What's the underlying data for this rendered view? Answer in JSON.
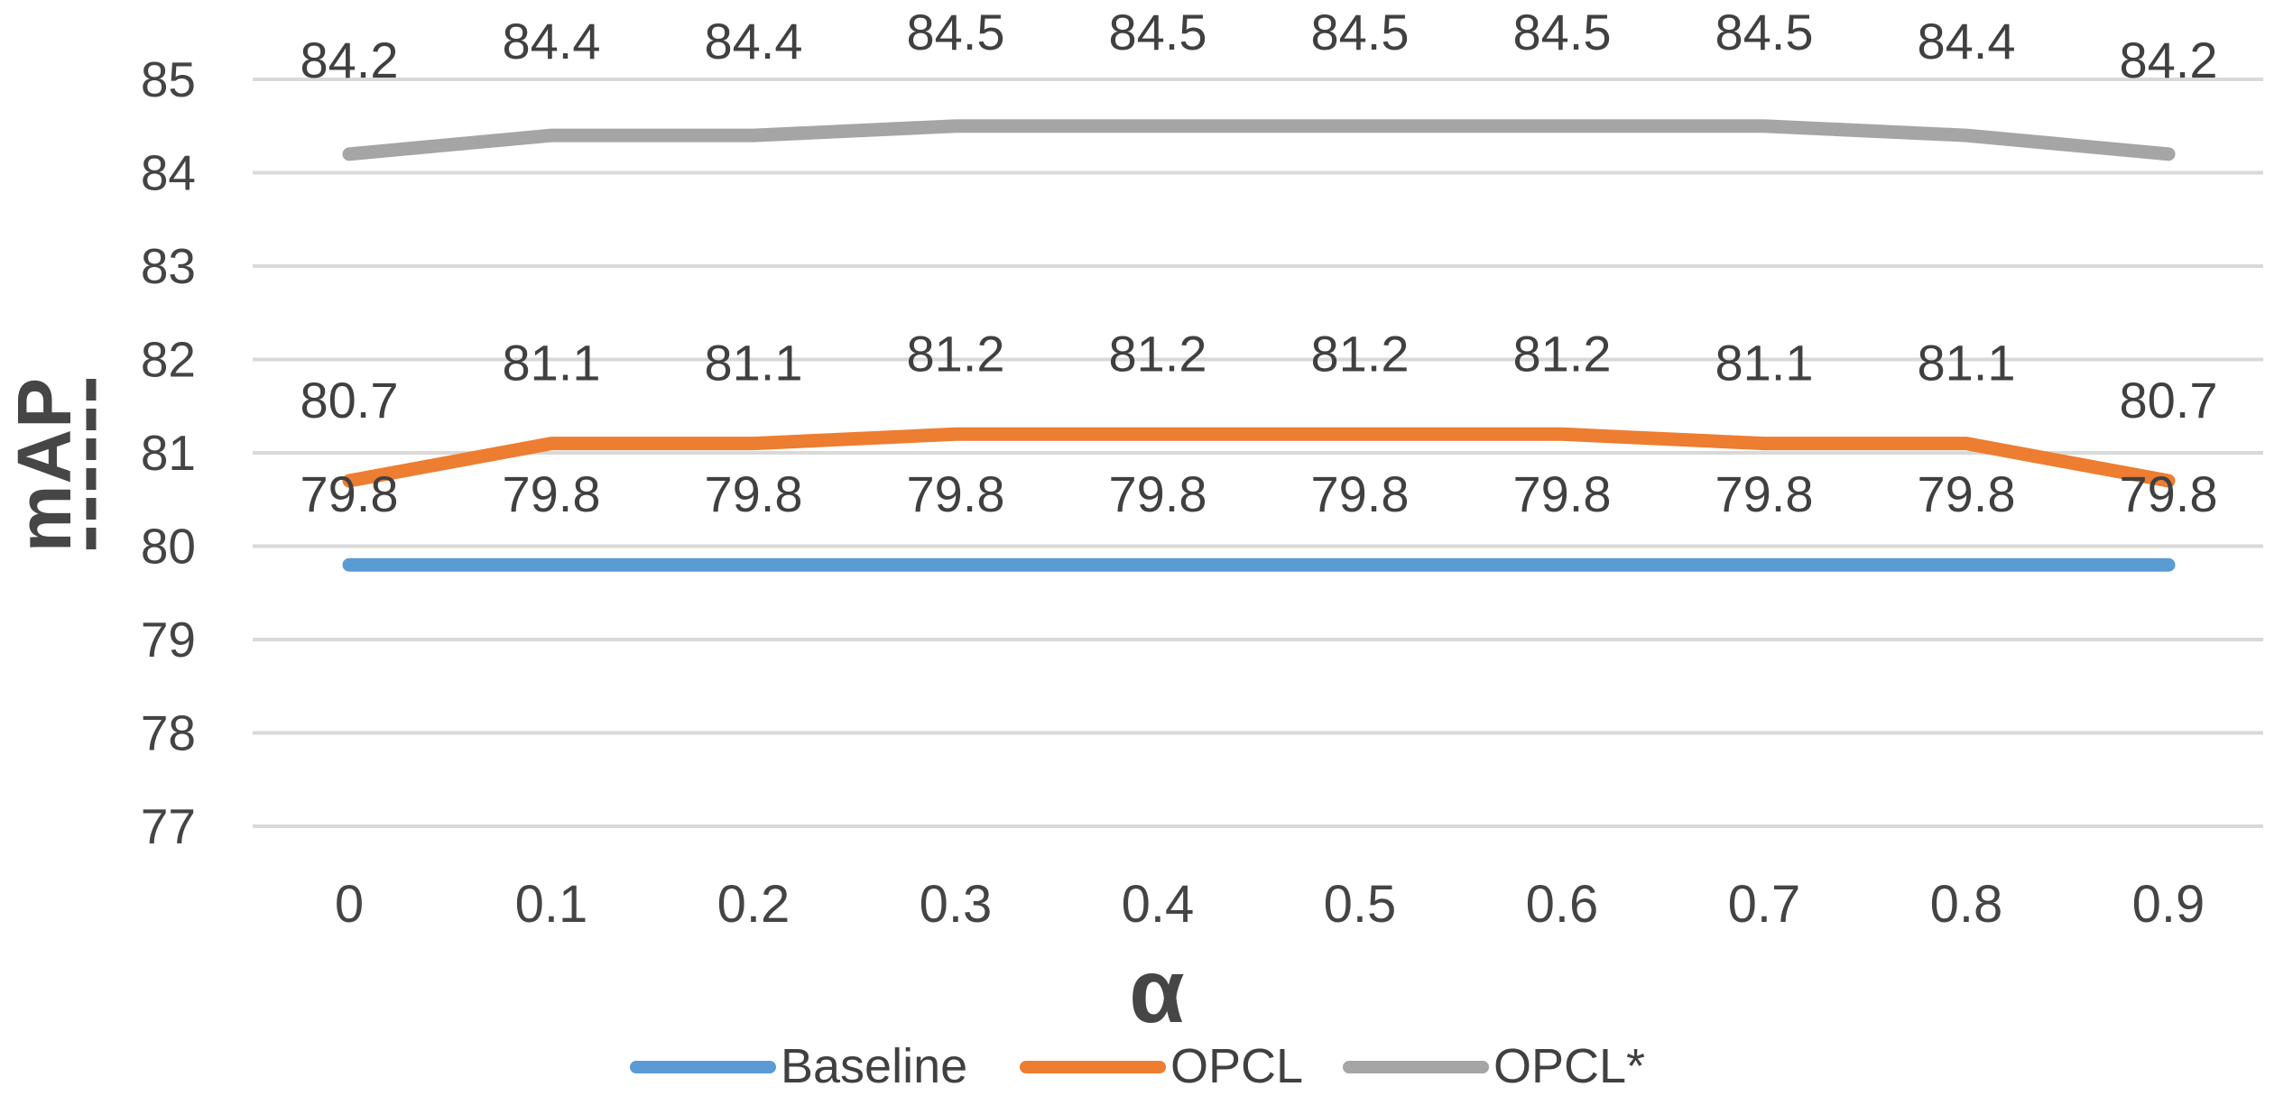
{
  "chart_data": {
    "type": "line",
    "title": "",
    "xlabel": "α",
    "ylabel": "mAP",
    "categories": [
      "0",
      "0.1",
      "0.2",
      "0.3",
      "0.4",
      "0.5",
      "0.6",
      "0.7",
      "0.8",
      "0.9"
    ],
    "ylim": [
      77,
      85
    ],
    "ytick_step": 1,
    "yticks": [
      77,
      78,
      79,
      80,
      81,
      82,
      83,
      84,
      85
    ],
    "grid": true,
    "data_labels": true,
    "legend_position": "bottom",
    "series": [
      {
        "name": "Baseline",
        "color": "#5B9BD5",
        "values": [
          79.8,
          79.8,
          79.8,
          79.8,
          79.8,
          79.8,
          79.8,
          79.8,
          79.8,
          79.8
        ]
      },
      {
        "name": "OPCL",
        "color": "#ED7D31",
        "values": [
          80.7,
          81.1,
          81.1,
          81.2,
          81.2,
          81.2,
          81.2,
          81.1,
          81.1,
          80.7
        ]
      },
      {
        "name": "OPCL*",
        "color": "#A5A5A5",
        "values": [
          84.2,
          84.4,
          84.4,
          84.5,
          84.5,
          84.5,
          84.5,
          84.5,
          84.4,
          84.2
        ]
      }
    ],
    "colors": {
      "gridline": "#D9D9D9",
      "tick_text": "#444444",
      "label_text": "#404040",
      "axis_title_text": "#464646",
      "background": "#FFFFFF"
    }
  }
}
